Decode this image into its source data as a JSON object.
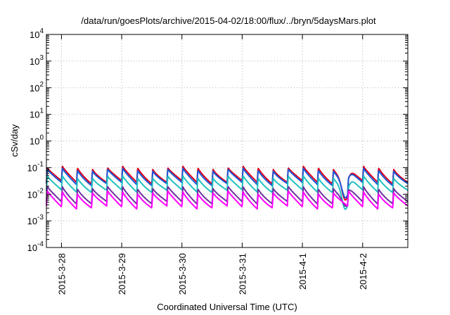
{
  "chart_data": {
    "type": "line",
    "title": "/data/run/goesPlots/archive/2015-04-02/18:00/flux/../bryn/5daysMars.plot",
    "xlabel": "Coordinated Universal Time (UTC)",
    "ylabel": "cSv/day",
    "y_scale": "log",
    "ylim": [
      0.0001,
      10000
    ],
    "y_ticks": [
      {
        "base": "10",
        "exp": "-4"
      },
      {
        "base": "10",
        "exp": "-3"
      },
      {
        "base": "10",
        "exp": "-2"
      },
      {
        "base": "10",
        "exp": "-1"
      },
      {
        "base": "10",
        "exp": "0"
      },
      {
        "base": "10",
        "exp": "1"
      },
      {
        "base": "10",
        "exp": "2"
      },
      {
        "base": "10",
        "exp": "3"
      },
      {
        "base": "10",
        "exp": "4"
      }
    ],
    "x_ticks": [
      "2015-3-28",
      "2015-3-29",
      "2015-3-30",
      "2015-3-31",
      "2015-4-1",
      "2015-4-2"
    ],
    "xlim": [
      "2015-03-27 18:00",
      "2015-04-02 18:00"
    ],
    "grid": true,
    "legend": "none",
    "periodic_pattern": {
      "period_hours": 6,
      "description": "sawtooth: sharp rise at each 6-hour mark followed by gradual decay"
    },
    "series": [
      {
        "color": "#e0001b",
        "peak": 0.1,
        "trough": 0.028
      },
      {
        "color": "#1a5ad8",
        "peak": 0.085,
        "trough": 0.024
      },
      {
        "color": "#20c0c0",
        "peak": 0.045,
        "trough": 0.013
      },
      {
        "color": "#7030a0",
        "peak": 0.018,
        "trough": 0.0048
      },
      {
        "color": "#ff00ff",
        "peak": 0.012,
        "trough": 0.0032
      }
    ],
    "dip_event": {
      "time": "2015-04-01 17:00",
      "min_value": 0.001
    }
  }
}
